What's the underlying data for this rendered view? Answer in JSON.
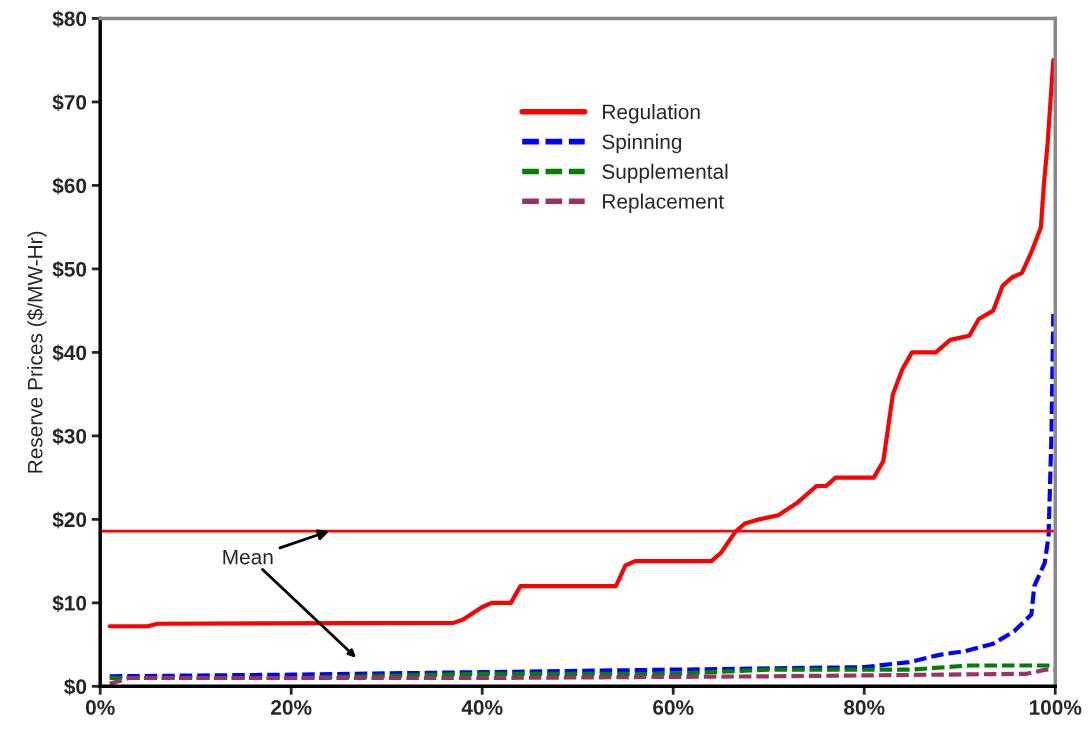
{
  "chart_data": {
    "type": "line",
    "ylabel": "Reserve Prices ($/MW-Hr)",
    "xlim": [
      0,
      100
    ],
    "xticks": [
      {
        "value": 0,
        "label": "0%"
      },
      {
        "value": 20,
        "label": "20%"
      },
      {
        "value": 40,
        "label": "40%"
      },
      {
        "value": 60,
        "label": "60%"
      },
      {
        "value": 80,
        "label": "80%"
      },
      {
        "value": 100,
        "label": "100%"
      }
    ],
    "ylim": [
      0,
      80
    ],
    "yticks": [
      {
        "value": 0,
        "label": "$0"
      },
      {
        "value": 10,
        "label": "$10"
      },
      {
        "value": 20,
        "label": "$20"
      },
      {
        "value": 30,
        "label": "$30"
      },
      {
        "value": 40,
        "label": "$40"
      },
      {
        "value": 50,
        "label": "$50"
      },
      {
        "value": 60,
        "label": "$60"
      },
      {
        "value": 70,
        "label": "$70"
      },
      {
        "value": 80,
        "label": "$80"
      }
    ],
    "grid": false,
    "legend": "top",
    "marker": "none",
    "series": [
      {
        "name": "Regulation",
        "color": "#ff0000",
        "line_style": "solid",
        "x": [
          1,
          5,
          6,
          37,
          38,
          40,
          41,
          43,
          44,
          54,
          55,
          56,
          64,
          65,
          66.5,
          67.5,
          69,
          71,
          73,
          75,
          76,
          77,
          81,
          82,
          82.5,
          83,
          84,
          85,
          87.5,
          89,
          91,
          92,
          93.5,
          94.5,
          95.5,
          96.5,
          97.5,
          98.5,
          98.8,
          99.2,
          99.5,
          99.8
        ],
        "values": [
          7.2,
          7.2,
          7.5,
          7.6,
          8,
          9.5,
          10,
          10,
          12,
          12,
          14.5,
          15,
          15,
          16,
          18.5,
          19.5,
          20,
          20.5,
          22,
          24,
          24,
          25,
          25,
          27,
          31,
          35,
          38,
          40,
          40,
          41.5,
          42,
          44,
          45,
          48,
          49,
          49.5,
          52,
          55,
          60,
          65,
          70,
          75
        ]
      },
      {
        "name": "Spinning",
        "color": "#0000ff",
        "line_style": "dashed",
        "x": [
          1,
          20,
          40,
          60,
          80,
          84.7,
          88,
          90.5,
          93.5,
          95.7,
          97.5,
          97.8,
          98.9,
          99.3,
          99.6,
          99.8
        ],
        "values": [
          1.2,
          1.4,
          1.7,
          2,
          2.3,
          2.9,
          3.8,
          4.2,
          5.1,
          6.6,
          8.6,
          12,
          14.8,
          18,
          30,
          45
        ]
      },
      {
        "name": "Supplemental",
        "color": "#008000",
        "line_style": "dashed",
        "x": [
          1,
          20,
          40,
          60,
          70,
          85,
          91,
          100
        ],
        "values": [
          1,
          1,
          1.5,
          1.5,
          2,
          2,
          2.5,
          2.5
        ]
      },
      {
        "name": "Replacement",
        "color": "#993366",
        "line_style": "dashed",
        "x": [
          1,
          3,
          40,
          70,
          97,
          99,
          100
        ],
        "values": [
          0.3,
          1,
          1,
          1.2,
          1.5,
          2,
          2
        ]
      }
    ],
    "ref_lines": [
      {
        "axis": "y",
        "value": 18.6,
        "color": "#ff0000",
        "line_style": "solid"
      }
    ],
    "annotations": [
      {
        "text": "Mean",
        "x": 24,
        "y": 18.6
      }
    ]
  }
}
